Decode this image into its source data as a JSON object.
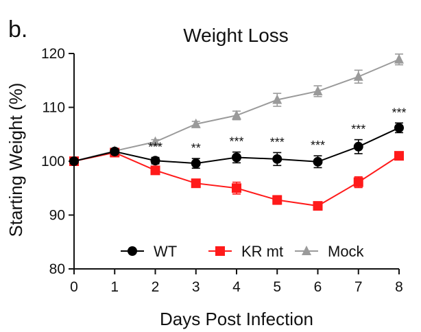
{
  "panel_label": "b.",
  "chart_data": {
    "type": "line",
    "title": "Weight Loss",
    "xlabel": "Days Post Infection",
    "ylabel": "Starting  Weight (%)",
    "x": [
      0,
      1,
      2,
      3,
      4,
      5,
      6,
      7,
      8
    ],
    "xlim": [
      0,
      8
    ],
    "ylim": [
      80,
      120
    ],
    "yticks": [
      80,
      90,
      100,
      110,
      120
    ],
    "grid": false,
    "legend_position": "bottom-center",
    "series": [
      {
        "name": "WT",
        "marker": "circle",
        "color": "#000000",
        "values": [
          100,
          101.8,
          100.1,
          99.6,
          100.7,
          100.4,
          99.9,
          102.7,
          106.2
        ],
        "errors": [
          0.3,
          0.4,
          0.6,
          0.9,
          1.0,
          1.2,
          1.1,
          1.3,
          0.9
        ]
      },
      {
        "name": "KR mt",
        "marker": "square",
        "color": "#ff1a1a",
        "values": [
          100,
          101.6,
          98.3,
          95.9,
          95.0,
          92.8,
          91.7,
          96.1,
          101.0
        ],
        "errors": [
          0.3,
          0.4,
          0.6,
          0.6,
          1.1,
          0.8,
          0.7,
          1.0,
          0.6
        ]
      },
      {
        "name": "Mock",
        "marker": "triangle",
        "color": "#9a9a9a",
        "values": [
          100,
          101.9,
          103.6,
          106.9,
          108.5,
          111.4,
          113.0,
          115.7,
          118.9
        ],
        "errors": [
          0.3,
          0.3,
          0.4,
          0.5,
          0.8,
          1.2,
          1.0,
          1.2,
          1.0
        ]
      }
    ],
    "annotations": [
      {
        "x": 2,
        "text": "***"
      },
      {
        "x": 3,
        "text": "**"
      },
      {
        "x": 4,
        "text": "***"
      },
      {
        "x": 5,
        "text": "***"
      },
      {
        "x": 6,
        "text": "***"
      },
      {
        "x": 7,
        "text": "***"
      },
      {
        "x": 8,
        "text": "***"
      }
    ]
  }
}
